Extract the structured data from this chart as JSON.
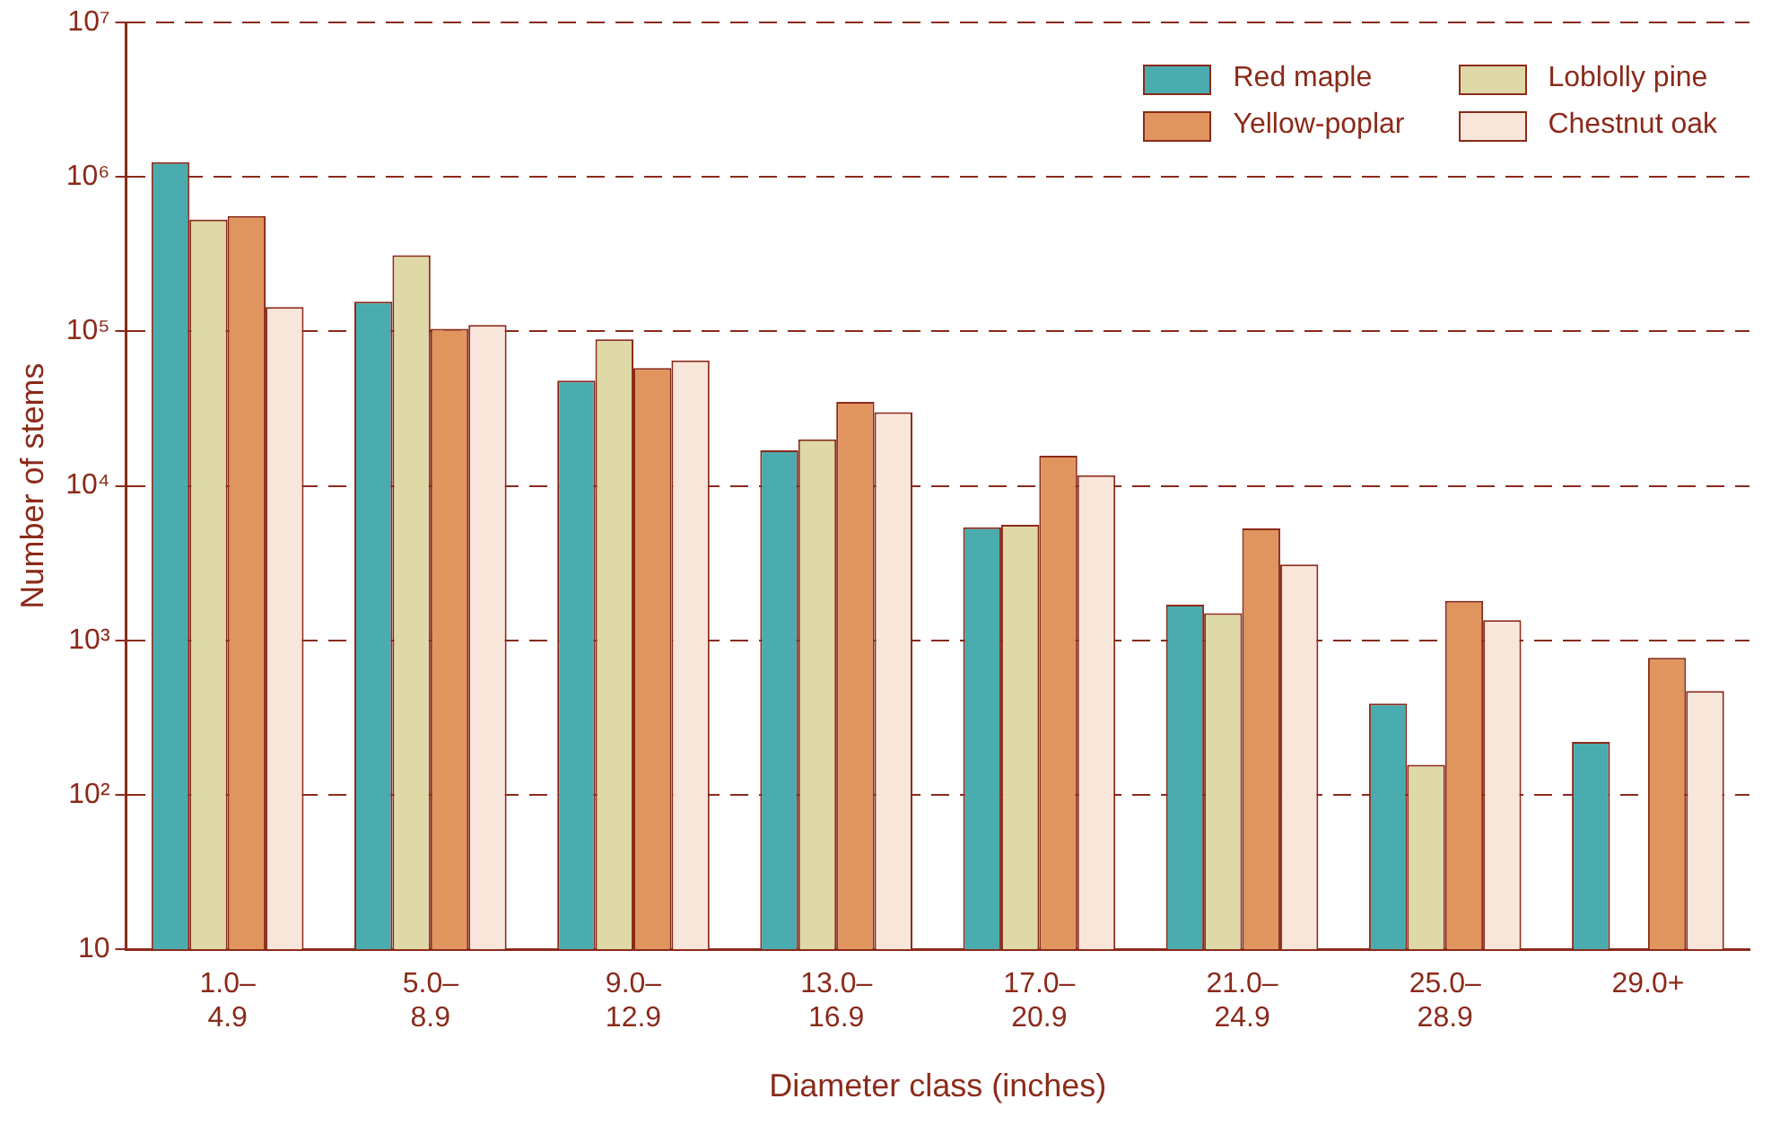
{
  "chart_data": {
    "type": "bar",
    "xlabel": "Diameter class (inches)",
    "ylabel": "Number of stems",
    "categories": [
      "1.0–4.9",
      "5.0–8.9",
      "9.0–12.9",
      "13.0–16.9",
      "17.0–20.9",
      "21.0–24.9",
      "25.0–28.9",
      "29.0+"
    ],
    "series": [
      {
        "name": "Red maple",
        "color": "#4bacb0",
        "values": [
          1250000,
          156000,
          48000,
          17000,
          5400,
          1700,
          390,
          220
        ]
      },
      {
        "name": "Loblolly pine",
        "color": "#ded9a6",
        "values": [
          530000,
          312000,
          89000,
          20000,
          5600,
          1500,
          156,
          null
        ]
      },
      {
        "name": "Yellow-poplar",
        "color": "#e0955e",
        "values": [
          560000,
          104000,
          58000,
          35000,
          15700,
          5300,
          1800,
          770
        ]
      },
      {
        "name": "Chestnut oak",
        "color": "#f9e6da",
        "values": [
          144000,
          110000,
          65000,
          30000,
          11700,
          3100,
          1350,
          470
        ]
      }
    ],
    "log": "y",
    "ylim": [
      10,
      10000000
    ],
    "yticks": [
      10,
      {
        "value": 100,
        "label": "10²"
      },
      {
        "value": 1000,
        "label": "10³"
      },
      {
        "value": 10000,
        "label": "10⁴"
      },
      {
        "value": 100000,
        "label": "10⁵"
      },
      {
        "value": 1000000,
        "label": "10⁶"
      },
      {
        "value": 10000000,
        "label": "10⁷"
      }
    ],
    "grid": "y",
    "legend": "top right"
  }
}
